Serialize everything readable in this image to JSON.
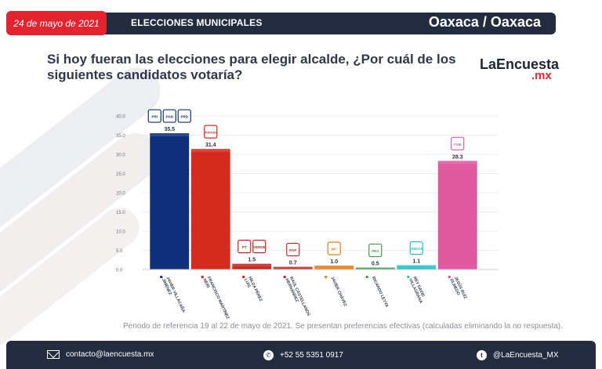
{
  "header": {
    "date": "24 de mayo de 2021",
    "section": "ELECCIONES MUNICIPALES",
    "location": "Oaxaca / Oaxaca"
  },
  "question": "Si hoy fueran las elecciones para elegir alcalde, ¿Por cuál de los siguientes candidatos votaría?",
  "brand": {
    "name": "LaEncuesta",
    "suffix": ".mx"
  },
  "chart_data": {
    "type": "bar",
    "title": "",
    "xlabel": "",
    "ylabel": "",
    "ylim": [
      0,
      40
    ],
    "yticks": [
      "0.0",
      "5.0",
      "10.0",
      "15.0",
      "20.0",
      "25.0",
      "30.0",
      "35.0",
      "40.0"
    ],
    "categories": [
      "JAVIER VILLACAÑA JIMÉNEZ",
      "FRANCISCO MARTÍNEZ NERI",
      "HILDA PÉREZ LUIS",
      "RAÚL CASTELLANOS HERNÁNDEZ",
      "JAVIER CHÁVEZ",
      "RICARDO LEYVA",
      "REY DAVID VILLAGRANA",
      "JESÚS RUÍZ OLMEDO"
    ],
    "values": [
      35.5,
      31.4,
      1.5,
      0.7,
      1.0,
      0.5,
      1.1,
      28.3
    ],
    "labels": [
      "35.5",
      "31.4",
      "1.5",
      "0.7",
      "1.0",
      "0.5",
      "1.1",
      "28.3"
    ],
    "party_logos": [
      [
        "PRI",
        "PAN",
        "PRD"
      ],
      [
        "morena"
      ],
      [
        "PT",
        "VERDE"
      ],
      [
        "RSP"
      ],
      [
        "MC"
      ],
      [
        "PES"
      ],
      [
        "UNIDAD"
      ],
      [
        "FXM"
      ]
    ],
    "colors": [
      "#0f2f7a",
      "#d42b1e",
      "#c8261f",
      "#c02a2a",
      "#ec7a17",
      "#3f9b4a",
      "#25c0cf",
      "#e05aa0"
    ]
  },
  "footnote": "Periodo de referencia 19 al 22 de mayo de 2021. Se presentan preferencias efectivas (calculadas eliminando la no respuesta).",
  "footer": {
    "email": "contacto@laencuesta.mx",
    "phone": "+52 55 5351 0917",
    "twitter": "@LaEncuesta_MX"
  }
}
